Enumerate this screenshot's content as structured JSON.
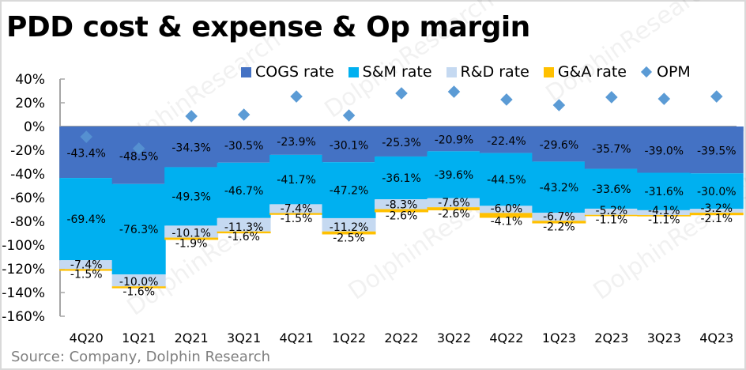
{
  "chart_data": {
    "type": "bar",
    "stacked": true,
    "title": "PDD cost & expense & Op margin",
    "source": "Source: Company,  Dolphin Research",
    "watermark": "DolphinResearch",
    "xlabel": "",
    "ylabel": "",
    "ylim": [
      -1.6,
      0.4
    ],
    "yticks": [
      0.4,
      0.2,
      0,
      -0.2,
      -0.4,
      -0.6,
      -0.8,
      -1.0,
      -1.2,
      -1.4,
      -1.6
    ],
    "ytick_labels": [
      "40%",
      "20%",
      "0%",
      "-20%",
      "-40%",
      "-60%",
      "-80%",
      "-100%",
      "-120%",
      "-140%",
      "-160%"
    ],
    "legend_position": "top-right",
    "grid": false,
    "categories": [
      "4Q20",
      "1Q21",
      "2Q21",
      "3Q21",
      "4Q21",
      "1Q22",
      "2Q22",
      "3Q22",
      "4Q22",
      "1Q23",
      "2Q23",
      "3Q23",
      "4Q23"
    ],
    "series": [
      {
        "name": "COGS rate",
        "type": "bar",
        "color": "#4472c4",
        "values": [
          -43.4,
          -48.5,
          -34.3,
          -30.5,
          -23.9,
          -30.1,
          -25.3,
          -20.9,
          -22.4,
          -29.6,
          -35.7,
          -39.0,
          -39.5
        ],
        "labels": [
          "-43.4%",
          "-48.5%",
          "-34.3%",
          "-30.5%",
          "-23.9%",
          "-30.1%",
          "-25.3%",
          "-20.9%",
          "-22.4%",
          "-29.6%",
          "-35.7%",
          "-39.0%",
          "-39.5%"
        ]
      },
      {
        "name": "S&M rate",
        "type": "bar",
        "color": "#00b0f0",
        "values": [
          -69.4,
          -76.3,
          -49.3,
          -46.7,
          -41.7,
          -47.2,
          -36.1,
          -39.6,
          -44.5,
          -43.2,
          -33.6,
          -31.6,
          -30.0
        ],
        "labels": [
          "-69.4%",
          "-76.3%",
          "-49.3%",
          "-46.7%",
          "-41.7%",
          "-47.2%",
          "-36.1%",
          "-39.6%",
          "-44.5%",
          "-43.2%",
          "-33.6%",
          "-31.6%",
          "-30.0%"
        ]
      },
      {
        "name": "R&D rate",
        "type": "bar",
        "color": "#c5d9f1",
        "values": [
          -7.4,
          -10.0,
          -10.1,
          -11.3,
          -7.4,
          -11.2,
          -8.3,
          -7.6,
          -6.0,
          -6.7,
          -5.2,
          -4.1,
          -3.2
        ],
        "labels": [
          "-7.4%",
          "-10.0%",
          "-10.1%",
          "-11.3%",
          "-7.4%",
          "-11.2%",
          "-8.3%",
          "-7.6%",
          "-6.0%",
          "-6.7%",
          "-5.2%",
          "-4.1%",
          "-3.2%"
        ]
      },
      {
        "name": "G&A rate",
        "type": "bar",
        "color": "#ffc000",
        "values": [
          -1.5,
          -1.6,
          -1.9,
          -1.6,
          -1.5,
          -2.5,
          -2.6,
          -2.6,
          -4.1,
          -2.2,
          -1.1,
          -1.1,
          -2.1
        ],
        "labels": [
          "-1.5%",
          "-1.6%",
          "-1.9%",
          "-1.6%",
          "-1.5%",
          "-2.5%",
          "-2.6%",
          "-2.6%",
          "-4.1%",
          "-2.2%",
          "-1.1%",
          "-1.1%",
          "-2.1%"
        ]
      },
      {
        "name": "OPM",
        "type": "scatter",
        "marker": "diamond",
        "color": "#5b9bd5",
        "values": [
          -8.7,
          -18.6,
          8.7,
          10.0,
          25.3,
          9.3,
          28.0,
          29.3,
          22.7,
          18.0,
          24.7,
          23.3,
          25.3
        ]
      }
    ]
  }
}
